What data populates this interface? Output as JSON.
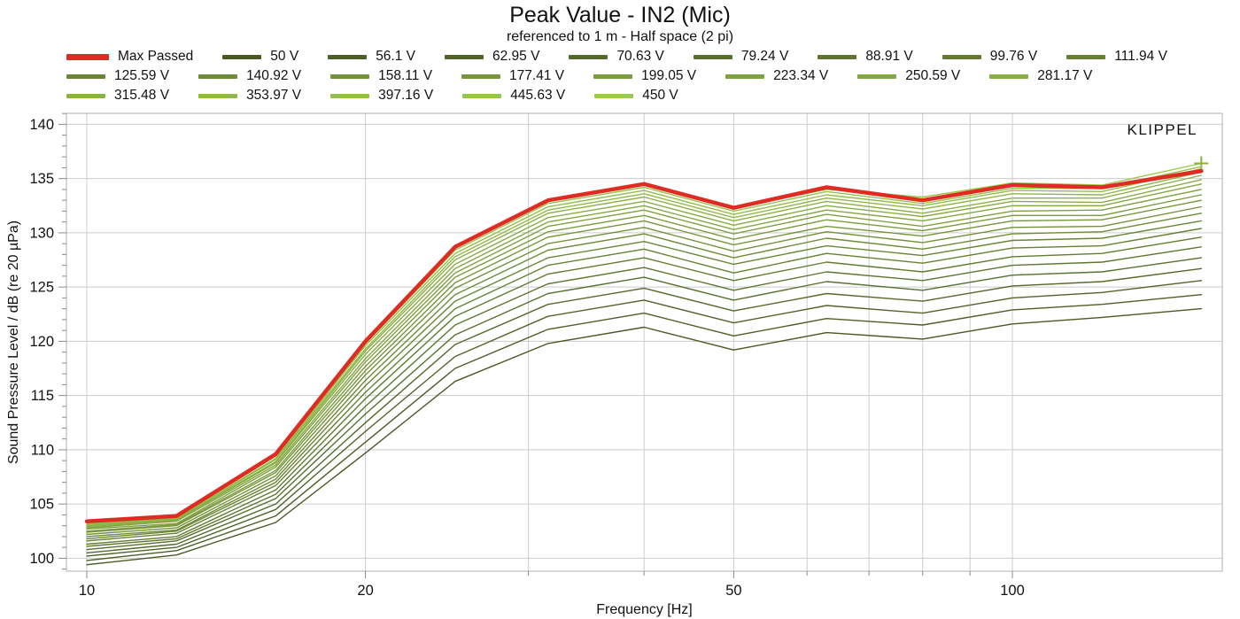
{
  "title": "Peak Value - IN2 (Mic)",
  "subtitle": "referenced to 1 m - Half space (2 pi)",
  "watermark": {
    "text": "KLIPPEL",
    "color": "#3d80ae"
  },
  "colors": {
    "grid": "#cccccc",
    "plot_border": "#b2b2b2",
    "tick": "#8a8a8a",
    "max_passed_red": "#e02b22",
    "series_color_start": "#4a5823",
    "series_color_end": "#9cc94f"
  },
  "axes": {
    "x": {
      "label": "Frequency [Hz]",
      "scale": "log",
      "min": 9.5,
      "max": 168.6,
      "major_ticks": [
        10,
        20,
        50,
        100
      ],
      "minor_ticks": [
        10,
        20,
        30,
        40,
        50,
        60,
        70,
        80,
        90,
        100
      ],
      "gridlines": [
        10,
        20,
        30,
        40,
        50,
        60,
        70,
        80,
        90,
        100
      ]
    },
    "y": {
      "label": "Sound Pressure Level / dB (re 20 µPa)",
      "min": 98.8,
      "max": 141,
      "major_ticks": [
        100,
        105,
        110,
        115,
        120,
        125,
        130,
        135,
        140
      ],
      "minor_step": 1
    }
  },
  "legend": {
    "row_sizes": [
      9,
      8,
      5
    ]
  },
  "chart_data": {
    "type": "line",
    "x": [
      10,
      12.5,
      16,
      20,
      25,
      31.5,
      40,
      50,
      63,
      80,
      100,
      125,
      160
    ],
    "series": [
      {
        "name": "Max Passed",
        "color": "#e02b22",
        "width": 4.5,
        "values": [
          103.4,
          103.9,
          109.6,
          120.0,
          128.7,
          133.0,
          134.5,
          132.3,
          134.2,
          133.0,
          134.4,
          134.2,
          135.7
        ]
      },
      {
        "name": "50 V",
        "color": "#4a5823",
        "values": [
          99.4,
          100.3,
          103.3,
          109.7,
          116.3,
          119.8,
          121.3,
          119.2,
          120.8,
          120.2,
          121.6,
          122.2,
          123.0
        ]
      },
      {
        "name": "56.1 V",
        "color": "#4e5e25",
        "values": [
          99.8,
          100.7,
          103.9,
          110.7,
          117.5,
          121.1,
          122.6,
          120.5,
          122.1,
          121.5,
          122.9,
          123.4,
          124.3
        ]
      },
      {
        "name": "62.95 V",
        "color": "#526327",
        "values": [
          100.2,
          101.0,
          104.5,
          111.7,
          118.6,
          122.3,
          123.8,
          121.7,
          123.3,
          122.6,
          124.0,
          124.5,
          125.6
        ]
      },
      {
        "name": "70.63 V",
        "color": "#56692a",
        "values": [
          100.5,
          101.3,
          105.0,
          112.5,
          119.7,
          123.4,
          124.9,
          122.8,
          124.4,
          123.7,
          125.1,
          125.5,
          126.7
        ]
      },
      {
        "name": "79.24 V",
        "color": "#5a6f2c",
        "values": [
          100.8,
          101.6,
          105.5,
          113.3,
          120.6,
          124.4,
          125.9,
          123.8,
          125.5,
          124.7,
          126.1,
          126.4,
          127.7
        ]
      },
      {
        "name": "88.91 V",
        "color": "#5f742e",
        "values": [
          101.1,
          101.8,
          105.9,
          114.0,
          121.5,
          125.3,
          126.8,
          124.7,
          126.4,
          125.6,
          127.0,
          127.3,
          128.7
        ]
      },
      {
        "name": "99.76 V",
        "color": "#637a30",
        "values": [
          101.3,
          102.0,
          106.3,
          114.7,
          122.3,
          126.2,
          127.7,
          125.6,
          127.3,
          126.4,
          127.8,
          128.1,
          129.6
        ]
      },
      {
        "name": "111.94 V",
        "color": "#678032",
        "values": [
          101.6,
          102.3,
          106.7,
          115.3,
          123.0,
          127.0,
          128.5,
          126.3,
          128.1,
          127.2,
          128.6,
          128.8,
          130.4
        ]
      },
      {
        "name": "125.59 V",
        "color": "#6b8535",
        "values": [
          101.8,
          102.5,
          107.0,
          115.9,
          123.7,
          127.7,
          129.2,
          127.1,
          128.8,
          127.9,
          129.3,
          129.5,
          131.1
        ]
      },
      {
        "name": "140.92 V",
        "color": "#6f8b37",
        "values": [
          102.0,
          102.6,
          107.3,
          116.4,
          124.3,
          128.4,
          129.9,
          127.7,
          129.5,
          128.5,
          129.9,
          130.1,
          131.8
        ]
      },
      {
        "name": "158.11 V",
        "color": "#739139",
        "values": [
          102.2,
          102.8,
          107.6,
          116.9,
          124.9,
          129.0,
          130.5,
          128.3,
          130.1,
          129.1,
          130.5,
          130.6,
          132.4
        ]
      },
      {
        "name": "177.41 V",
        "color": "#77963b",
        "values": [
          102.4,
          103.0,
          107.9,
          117.3,
          125.4,
          129.6,
          131.1,
          128.9,
          130.6,
          129.7,
          131.1,
          131.2,
          133.0
        ]
      },
      {
        "name": "199.05 V",
        "color": "#7b9c3d",
        "values": [
          102.5,
          103.1,
          108.1,
          117.7,
          125.9,
          130.1,
          131.6,
          129.4,
          131.2,
          130.2,
          131.6,
          131.6,
          133.5
        ]
      },
      {
        "name": "223.34 V",
        "color": "#7fa140",
        "values": [
          102.7,
          103.2,
          108.4,
          118.1,
          126.3,
          130.6,
          132.1,
          129.9,
          131.7,
          130.6,
          132.0,
          132.1,
          134.0
        ]
      },
      {
        "name": "250.59 V",
        "color": "#83a742",
        "values": [
          102.8,
          103.4,
          108.6,
          118.4,
          126.7,
          131.0,
          132.5,
          130.3,
          132.1,
          131.1,
          132.5,
          132.5,
          134.5
        ]
      },
      {
        "name": "281.17 V",
        "color": "#87ad44",
        "values": [
          102.9,
          103.5,
          108.8,
          118.8,
          127.1,
          131.4,
          132.9,
          130.7,
          132.5,
          131.5,
          132.9,
          132.8,
          134.9
        ]
      },
      {
        "name": "315.48 V",
        "color": "#8cb246",
        "values": [
          103.0,
          103.6,
          108.9,
          119.1,
          127.5,
          131.8,
          133.3,
          131.1,
          132.9,
          131.8,
          133.2,
          133.2,
          135.3
        ]
      },
      {
        "name": "353.97 V",
        "color": "#90b848",
        "values": [
          103.1,
          103.7,
          109.1,
          119.3,
          127.8,
          132.1,
          133.6,
          131.4,
          133.2,
          132.2,
          133.6,
          133.5,
          135.6
        ]
      },
      {
        "name": "397.16 V",
        "color": "#94be4b",
        "values": [
          103.2,
          103.7,
          109.2,
          119.6,
          128.1,
          132.4,
          133.9,
          131.7,
          133.5,
          132.5,
          133.9,
          133.8,
          135.9
        ]
      },
      {
        "name": "445.63 V",
        "color": "#98c34d",
        "values": [
          103.3,
          103.8,
          109.4,
          119.8,
          128.4,
          132.7,
          134.2,
          132.0,
          133.8,
          132.7,
          134.1,
          134.1,
          136.1
        ]
      },
      {
        "name": "450 V",
        "color": "#9cc94f",
        "end_marker": "+",
        "values": [
          103.4,
          103.9,
          109.5,
          120.0,
          128.6,
          133.0,
          134.5,
          132.3,
          134.0,
          133.3,
          134.6,
          134.4,
          136.4
        ]
      }
    ]
  }
}
